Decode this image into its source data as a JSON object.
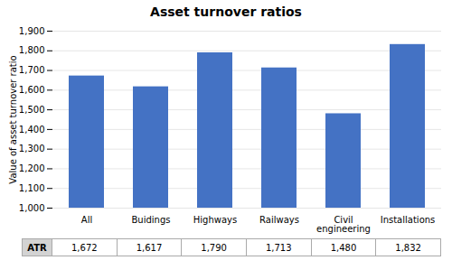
{
  "chart_data": {
    "type": "bar",
    "title": "Asset turnover ratios",
    "categories": [
      "All",
      "Buidings",
      "Highways",
      "Railways",
      "Civil\nengineering",
      "Installations"
    ],
    "values": [
      1672,
      1617,
      1790,
      1713,
      1480,
      1832
    ],
    "value_labels": [
      "1,672",
      "1,617",
      "1,790",
      "1,713",
      "1,480",
      "1,832"
    ],
    "table_row_label": "ATR",
    "color": "#4472C4",
    "ylabel": "Value of asset turnover ratio",
    "ylim": [
      1000,
      1900
    ],
    "yticks": [
      {
        "value": 1000,
        "label": "1,000"
      },
      {
        "value": 1100,
        "label": "1,100"
      },
      {
        "value": 1200,
        "label": "1,200"
      },
      {
        "value": 1300,
        "label": "1,300"
      },
      {
        "value": 1400,
        "label": "1,400"
      },
      {
        "value": 1500,
        "label": "1,500"
      },
      {
        "value": 1600,
        "label": "1,600"
      },
      {
        "value": 1700,
        "label": "1,700"
      },
      {
        "value": 1800,
        "label": "1,800"
      },
      {
        "value": 1900,
        "label": "1,900"
      }
    ],
    "grid": true
  }
}
